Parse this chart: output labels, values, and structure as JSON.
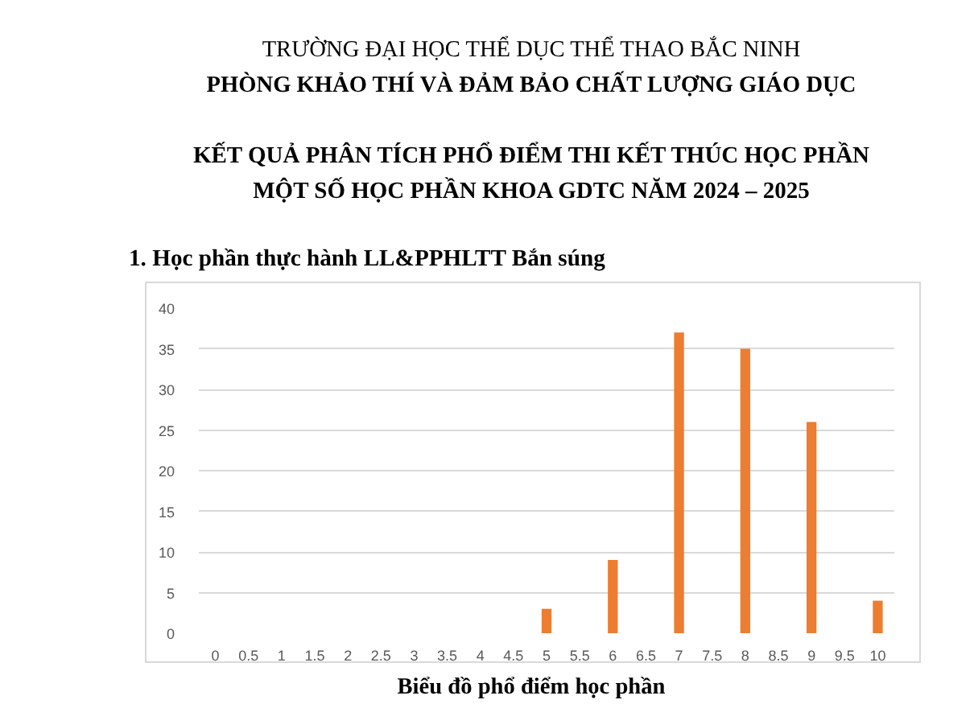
{
  "chart_data": {
    "type": "bar",
    "title": "KẾT QUẢ PHÂN TÍCH PHỔ ĐIỂM THI KẾT THÚC HỌC PHẦN\nMỘT SỐ HỌC PHẦN KHOA GDTC NĂM 2024 – 2025",
    "subtitle": "1. Học phần thực hành LL&PPHLTT Bắn súng",
    "annotations": [
      "TRƯỜNG ĐẠI HỌC THỂ DỤC THỂ THAO BẮC NINH",
      "PHÒNG KHẢO THÍ VÀ ĐẢM BẢO CHẤT LƯỢNG GIÁO DỤC",
      "Biểu đồ phổ điểm học phần"
    ],
    "categories": [
      "0",
      "0.5",
      "1",
      "1.5",
      "2",
      "2.5",
      "3",
      "3.5",
      "4",
      "4.5",
      "5",
      "5.5",
      "6",
      "6.5",
      "7",
      "7.5",
      "8",
      "8.5",
      "9",
      "9.5",
      "10"
    ],
    "values": [
      0,
      0,
      0,
      0,
      0,
      0,
      0,
      0,
      0,
      0,
      3,
      0,
      9,
      0,
      37,
      0,
      35,
      0,
      26,
      0,
      4
    ],
    "color": "#ed7d31",
    "ylim": [
      0,
      40
    ],
    "yticks": [
      0,
      5,
      10,
      15,
      20,
      25,
      30,
      35,
      40
    ],
    "grid": "y"
  }
}
